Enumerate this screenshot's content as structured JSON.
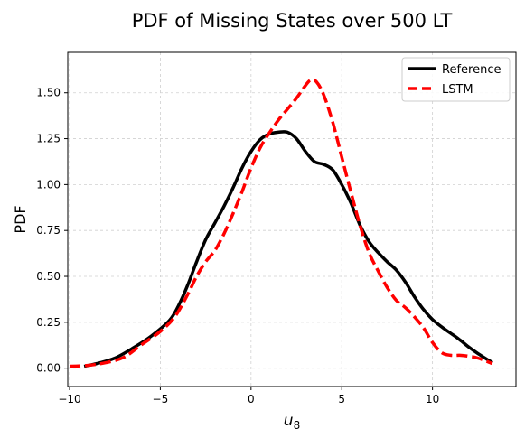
{
  "chart_data": {
    "type": "line",
    "title": "PDF of Missing States over 500 LT",
    "xlabel_base": "u",
    "xlabel_sub": "8",
    "ylabel": "PDF",
    "xlim": [
      -10.1,
      14.6
    ],
    "ylim": [
      -0.1,
      1.72
    ],
    "xticks": [
      -10,
      -5,
      0,
      5,
      10
    ],
    "xtick_labels": [
      "−10",
      "−5",
      "0",
      "5",
      "10"
    ],
    "yticks": [
      0.0,
      0.25,
      0.5,
      0.75,
      1.0,
      1.25,
      1.5
    ],
    "ytick_labels": [
      "0.00",
      "0.25",
      "0.50",
      "0.75",
      "1.00",
      "1.25",
      "1.50"
    ],
    "grid": true,
    "legend_position": "top-right",
    "series": [
      {
        "name": "Reference",
        "color": "#000000",
        "style": "solid",
        "points": [
          [
            -9.2,
            0.01
          ],
          [
            -8.5,
            0.025
          ],
          [
            -7.5,
            0.055
          ],
          [
            -6.5,
            0.11
          ],
          [
            -5.5,
            0.175
          ],
          [
            -4.5,
            0.26
          ],
          [
            -4,
            0.34
          ],
          [
            -3.5,
            0.45
          ],
          [
            -3,
            0.58
          ],
          [
            -2.5,
            0.7
          ],
          [
            -2,
            0.79
          ],
          [
            -1.5,
            0.88
          ],
          [
            -1,
            0.98
          ],
          [
            -0.5,
            1.09
          ],
          [
            0,
            1.18
          ],
          [
            0.5,
            1.245
          ],
          [
            1,
            1.275
          ],
          [
            1.5,
            1.285
          ],
          [
            2,
            1.285
          ],
          [
            2.5,
            1.25
          ],
          [
            3,
            1.18
          ],
          [
            3.5,
            1.125
          ],
          [
            4,
            1.11
          ],
          [
            4.5,
            1.08
          ],
          [
            5,
            1.0
          ],
          [
            5.5,
            0.9
          ],
          [
            6,
            0.78
          ],
          [
            6.5,
            0.69
          ],
          [
            7,
            0.63
          ],
          [
            7.5,
            0.58
          ],
          [
            8,
            0.535
          ],
          [
            8.5,
            0.47
          ],
          [
            9,
            0.39
          ],
          [
            9.5,
            0.32
          ],
          [
            10,
            0.265
          ],
          [
            10.5,
            0.225
          ],
          [
            11,
            0.19
          ],
          [
            11.5,
            0.155
          ],
          [
            12,
            0.115
          ],
          [
            12.5,
            0.08
          ],
          [
            13.3,
            0.03
          ]
        ]
      },
      {
        "name": "LSTM",
        "color": "#ff0000",
        "style": "dashed",
        "points": [
          [
            -10,
            0.01
          ],
          [
            -9,
            0.015
          ],
          [
            -8,
            0.03
          ],
          [
            -7,
            0.06
          ],
          [
            -6,
            0.13
          ],
          [
            -5,
            0.2
          ],
          [
            -4.2,
            0.28
          ],
          [
            -3.5,
            0.4
          ],
          [
            -3,
            0.5
          ],
          [
            -2.5,
            0.58
          ],
          [
            -2,
            0.64
          ],
          [
            -1.5,
            0.73
          ],
          [
            -1,
            0.84
          ],
          [
            -0.5,
            0.96
          ],
          [
            0,
            1.09
          ],
          [
            0.5,
            1.2
          ],
          [
            1,
            1.28
          ],
          [
            1.5,
            1.35
          ],
          [
            2,
            1.41
          ],
          [
            2.5,
            1.47
          ],
          [
            3,
            1.54
          ],
          [
            3.3,
            1.57
          ],
          [
            3.6,
            1.56
          ],
          [
            4,
            1.49
          ],
          [
            4.5,
            1.34
          ],
          [
            5,
            1.15
          ],
          [
            5.5,
            0.96
          ],
          [
            6,
            0.78
          ],
          [
            6.5,
            0.63
          ],
          [
            7,
            0.53
          ],
          [
            7.5,
            0.44
          ],
          [
            8,
            0.37
          ],
          [
            8.5,
            0.33
          ],
          [
            9,
            0.28
          ],
          [
            9.5,
            0.22
          ],
          [
            10,
            0.14
          ],
          [
            10.5,
            0.085
          ],
          [
            11,
            0.07
          ],
          [
            11.5,
            0.07
          ],
          [
            12,
            0.065
          ],
          [
            12.5,
            0.055
          ],
          [
            13.3,
            0.025
          ]
        ]
      }
    ]
  }
}
